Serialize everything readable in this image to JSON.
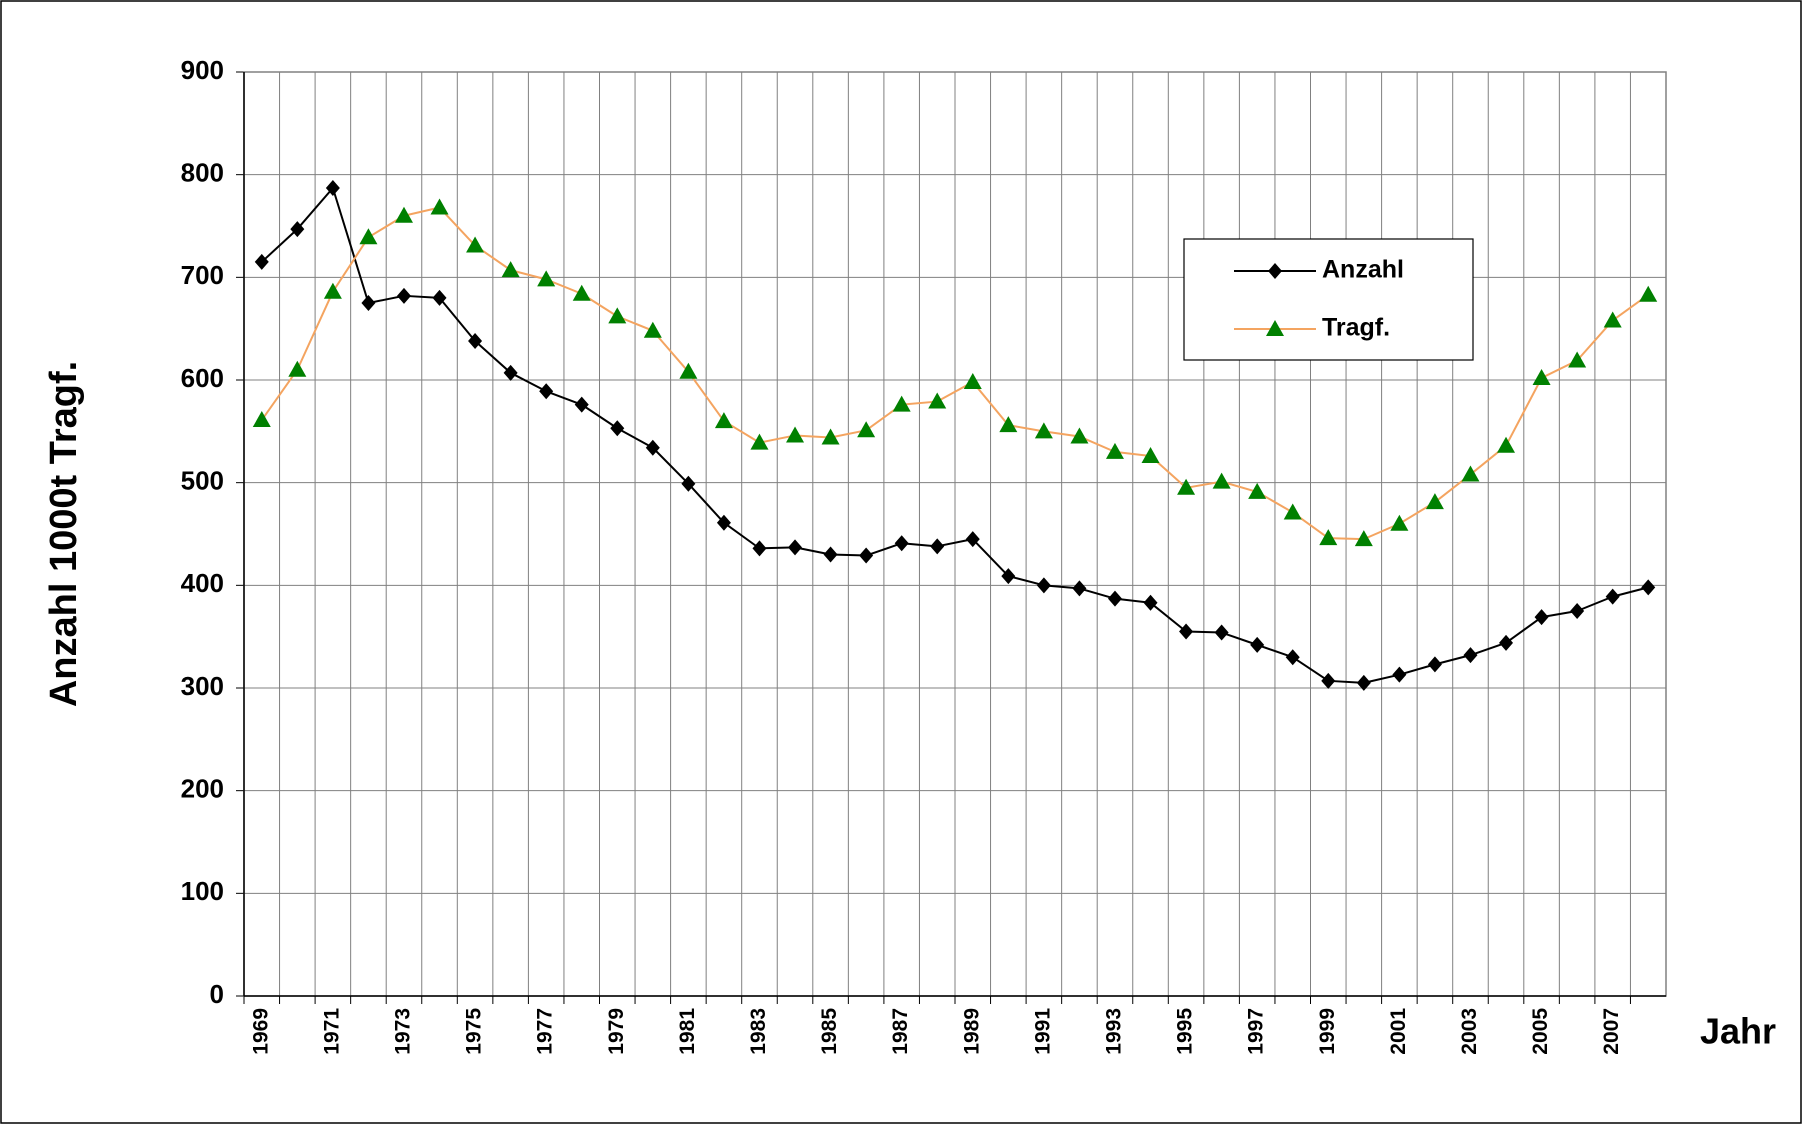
{
  "chart_data": {
    "type": "line",
    "y_label": "Anzahl  1000t Tragf.",
    "x_label": "Jahr",
    "categories": [
      "1969",
      null,
      "1971",
      null,
      "1973",
      null,
      "1975",
      null,
      "1977",
      null,
      "1979",
      null,
      "1981",
      null,
      "1983",
      null,
      "1985",
      null,
      "1987",
      null,
      "1989",
      null,
      "1991",
      null,
      "1993",
      null,
      "1995",
      null,
      "1997",
      null,
      "1999",
      null,
      "2001",
      null,
      "2003",
      null,
      "2005",
      null,
      "2007",
      null
    ],
    "series": [
      {
        "name": "Anzahl",
        "line_color": "#000000",
        "marker_color": "#000000",
        "marker": "diamond",
        "values": [
          715,
          747,
          787,
          675,
          682,
          680,
          638,
          607,
          589,
          576,
          553,
          534,
          499,
          461,
          436,
          437,
          430,
          429,
          441,
          438,
          445,
          409,
          400,
          397,
          387,
          383,
          355,
          354,
          342,
          330,
          307,
          305,
          313,
          323,
          332,
          344,
          369,
          375,
          389,
          398
        ]
      },
      {
        "name": "Tragf.",
        "line_color": "#f4a460",
        "marker_color": "#008000",
        "marker": "triangle",
        "values": [
          561,
          610,
          686,
          739,
          760,
          768,
          731,
          707,
          698,
          684,
          662,
          648,
          608,
          560,
          539,
          546,
          544,
          551,
          576,
          579,
          598,
          556,
          550,
          545,
          530,
          526,
          495,
          501,
          491,
          471,
          446,
          445,
          460,
          481,
          508,
          536,
          602,
          619,
          658,
          683
        ]
      }
    ],
    "ylim": [
      0,
      900
    ],
    "yticks": [
      0,
      100,
      200,
      300,
      400,
      500,
      600,
      700,
      800,
      900
    ],
    "grid": true,
    "legend": "upper right"
  }
}
